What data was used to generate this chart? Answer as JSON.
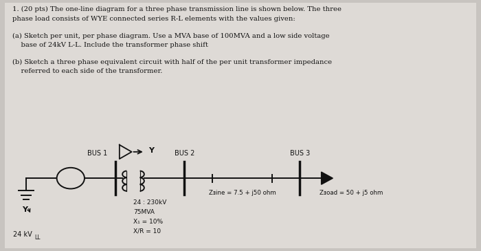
{
  "title_line1": "1. (20 pts) The one-line diagram for a three phase transmission line is shown below. The three",
  "title_line2": "phase load consists of WYE connected series R-L elements with the values given:",
  "part_a_line1": "(a) Sketch per unit, per phase diagram. Use a MVA base of 100MVA and a low side voltage",
  "part_a_line2": "    base of 24kV L-L. Include the transformer phase shift",
  "part_b_line1": "(b) Sketch a three phase equivalent circuit with half of the per unit transformer impedance",
  "part_b_line2": "    referred to each side of the transformer.",
  "bus1_label": "BUS 1",
  "bus2_label": "BUS 2",
  "bus3_label": "BUS 3",
  "source_label": "24 kV",
  "source_label2": "LL",
  "transformer_info": [
    "24 : 230kV",
    "75MVA",
    "X₁ = 10%",
    "X/R = 10"
  ],
  "zline_label": "Zⱻine = 7.5 + j50 ohm",
  "zload_label": "Zⱻoad = 50 + j5 ohm",
  "bg_color": "#c8c4c0",
  "inner_bg": "#dedad6",
  "text_color": "#111111",
  "diagram_color": "#111111"
}
